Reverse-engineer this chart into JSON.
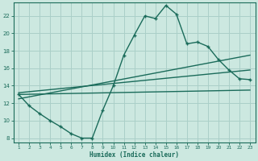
{
  "xlabel": "Humidex (Indice chaleur)",
  "background_color": "#cce8e0",
  "grid_color": "#aacfc8",
  "line_color": "#1a6b5a",
  "x_ticks": [
    1,
    2,
    3,
    4,
    5,
    6,
    7,
    8,
    9,
    10,
    11,
    12,
    13,
    14,
    15,
    16,
    17,
    18,
    19,
    20,
    21,
    22,
    23
  ],
  "y_ticks": [
    8,
    10,
    12,
    14,
    16,
    18,
    20,
    22
  ],
  "ylim": [
    7.5,
    23.5
  ],
  "xlim": [
    0.5,
    23.5
  ],
  "curve1_x": [
    1,
    2,
    3,
    4,
    5,
    6,
    7,
    8,
    9,
    10,
    11,
    12,
    13,
    14,
    15,
    16,
    17,
    18,
    19,
    20,
    21,
    22,
    23
  ],
  "curve1_y": [
    13.0,
    11.7,
    10.8,
    10.0,
    9.3,
    8.5,
    8.0,
    8.0,
    11.2,
    14.0,
    17.5,
    19.8,
    22.0,
    21.7,
    23.2,
    22.2,
    18.8,
    19.0,
    18.5,
    17.0,
    15.8,
    14.8,
    14.7
  ],
  "line1_x": [
    1,
    23
  ],
  "line1_y": [
    13.0,
    13.5
  ],
  "line2_x": [
    1,
    23
  ],
  "line2_y": [
    13.2,
    15.8
  ],
  "line3_x": [
    1,
    23
  ],
  "line3_y": [
    12.5,
    17.5
  ]
}
